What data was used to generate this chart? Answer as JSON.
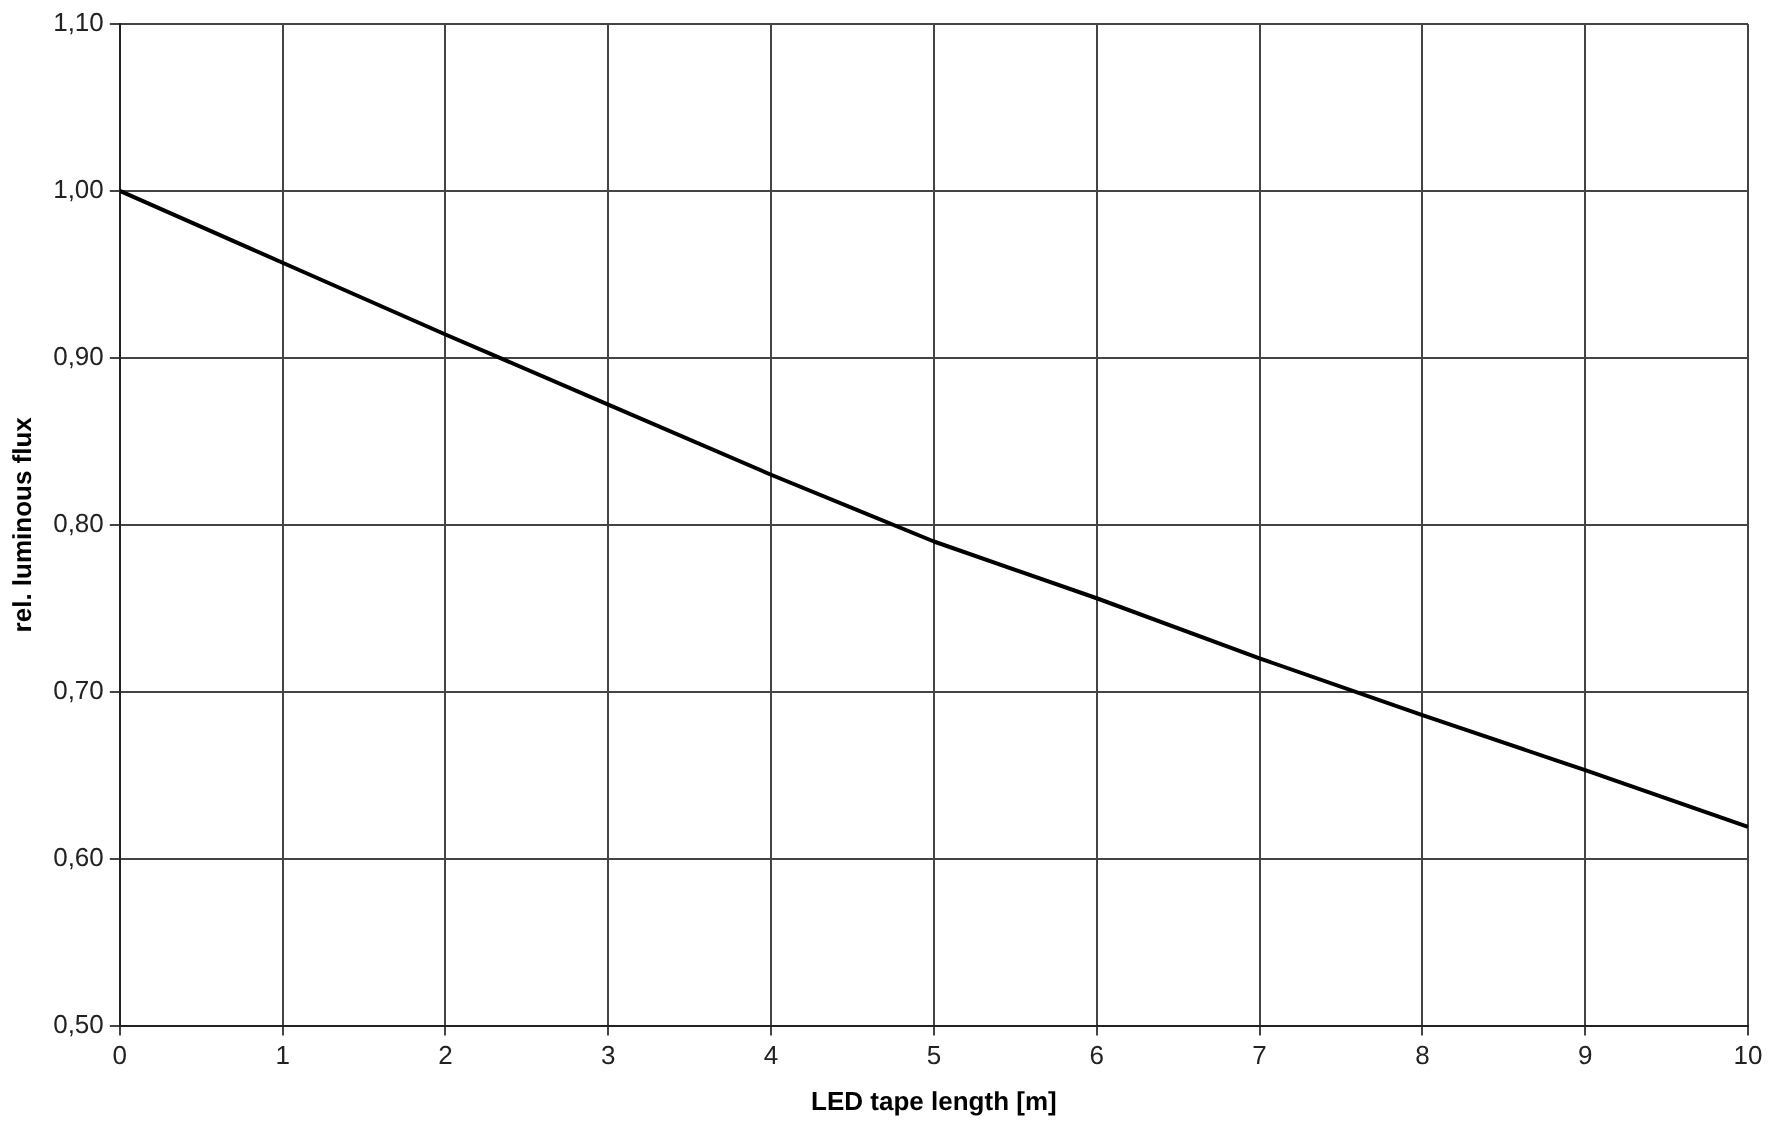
{
  "chart_data": {
    "type": "line",
    "xlabel": "LED tape length [m]",
    "ylabel": "rel. luminous flux",
    "x": [
      0,
      1,
      2,
      3,
      4,
      5,
      6,
      7,
      8,
      9,
      10
    ],
    "series": [
      {
        "color": "#000000",
        "values": [
          1.0,
          0.957,
          0.914,
          0.872,
          0.83,
          0.79,
          0.756,
          0.72,
          0.686,
          0.653,
          0.619
        ]
      }
    ],
    "xlim": [
      0,
      10
    ],
    "xticks": [
      0,
      1,
      2,
      3,
      4,
      5,
      6,
      7,
      8,
      9,
      10
    ],
    "ylim": [
      0.5,
      1.1
    ],
    "yticks": [
      {
        "value": 0.5,
        "label": "0,50"
      },
      {
        "value": 0.6,
        "label": "0,60"
      },
      {
        "value": 0.7,
        "label": "0,70"
      },
      {
        "value": 0.8,
        "label": "0,80"
      },
      {
        "value": 0.9,
        "label": "0,90"
      },
      {
        "value": 1.0,
        "label": "1,00"
      },
      {
        "value": 1.1,
        "label": "1,10"
      }
    ],
    "grid": true,
    "legend": false,
    "marker": "none",
    "line_style": "solid"
  }
}
